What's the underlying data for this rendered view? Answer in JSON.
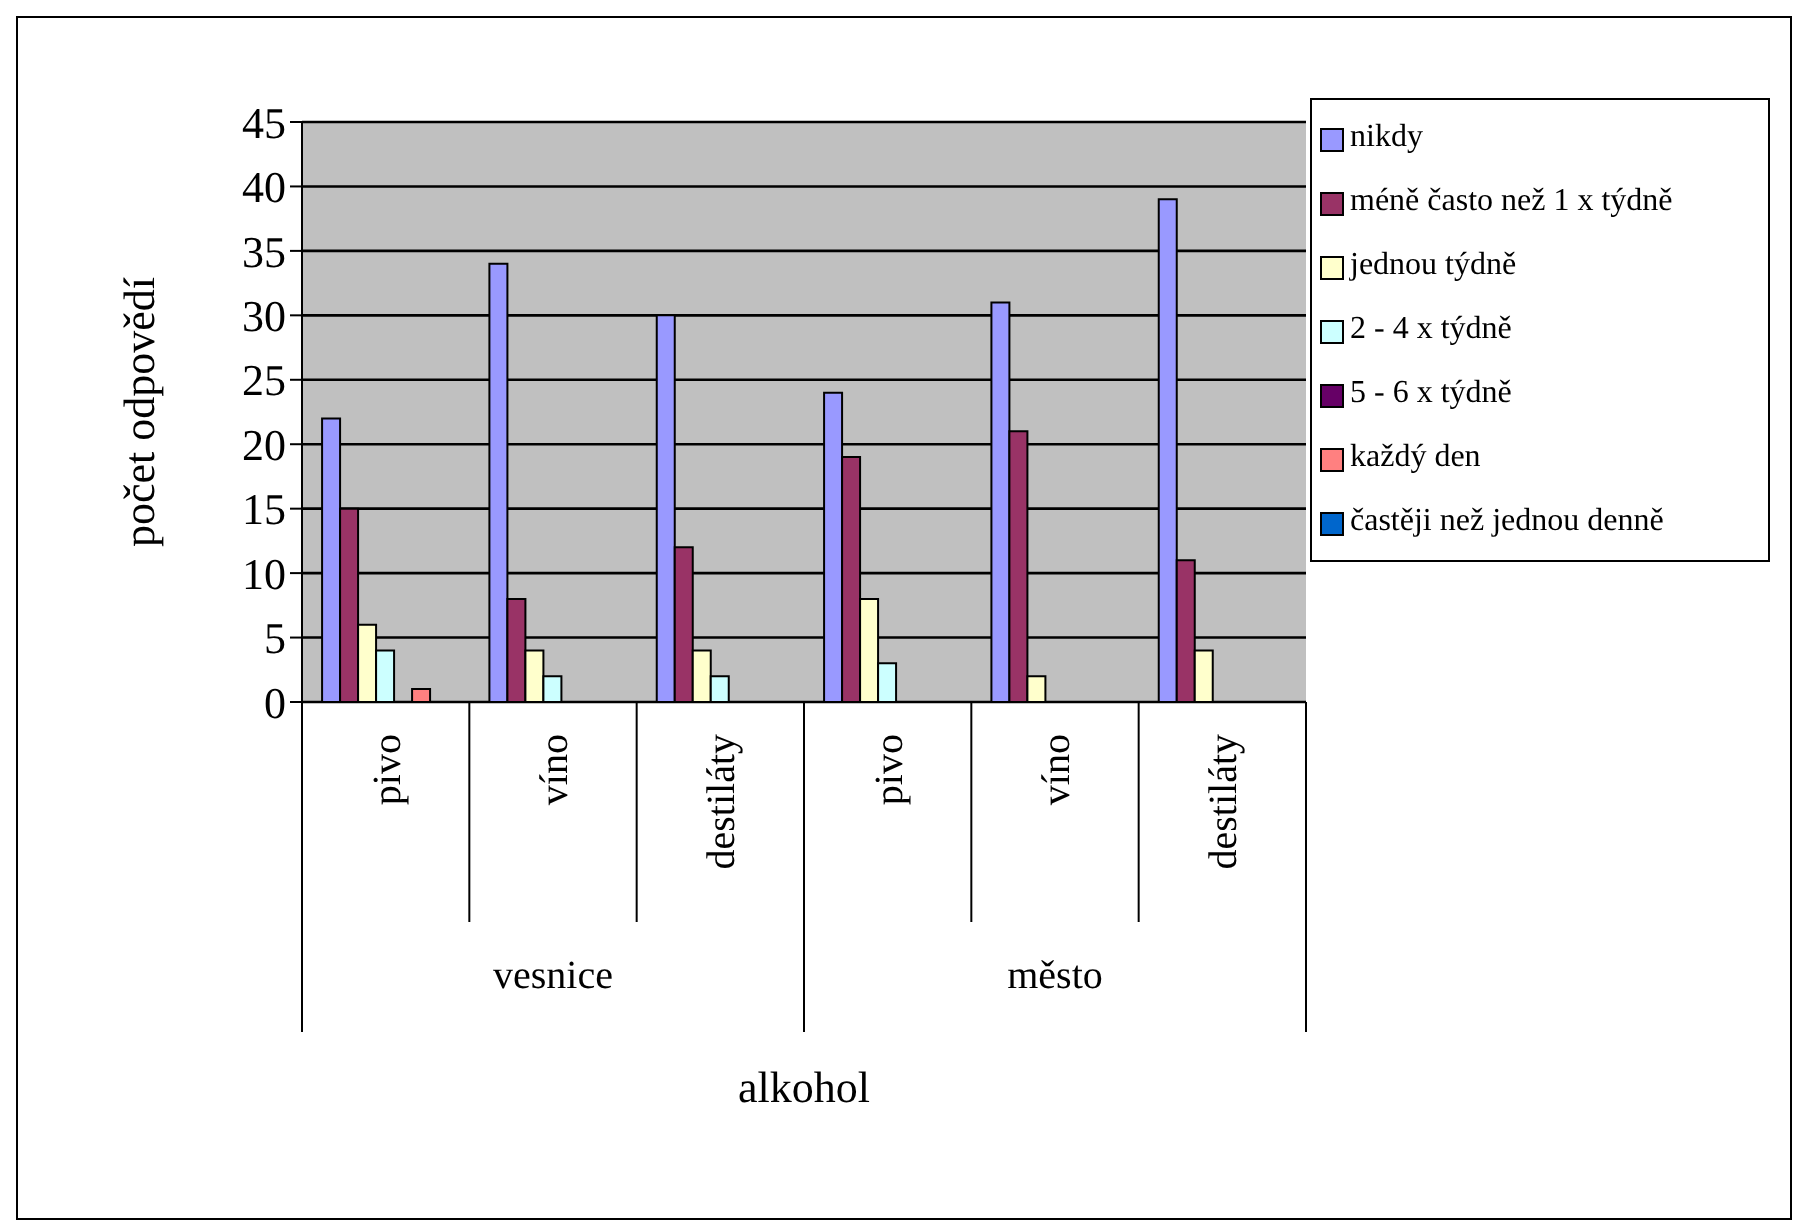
{
  "chart_data": {
    "type": "bar",
    "xlabel": "alkohol",
    "ylabel": "počet odpovědí",
    "categories": [
      "pivo",
      "víno",
      "destiláty",
      "pivo",
      "víno",
      "destiláty"
    ],
    "annotations": [
      "vesnice",
      "město"
    ],
    "series": [
      {
        "name": "nikdy",
        "color": "#9999ff",
        "values": [
          22,
          34,
          30,
          24,
          31,
          39
        ]
      },
      {
        "name": "méně často než 1 x týdně",
        "color": "#993366",
        "values": [
          15,
          8,
          12,
          19,
          21,
          11
        ]
      },
      {
        "name": "jednou týdně",
        "color": "#ffffcc",
        "values": [
          6,
          4,
          4,
          8,
          2,
          4
        ]
      },
      {
        "name": "2 - 4 x týdně",
        "color": "#ccffff",
        "values": [
          4,
          2,
          2,
          3,
          0,
          0
        ]
      },
      {
        "name": "5 - 6 x týdně",
        "color": "#660066",
        "values": [
          0,
          0,
          0,
          0,
          0,
          0
        ]
      },
      {
        "name": "každý den",
        "color": "#ff8080",
        "values": [
          1,
          0,
          0,
          0,
          0,
          0
        ]
      },
      {
        "name": "častěji než jednou denně",
        "color": "#0066cc",
        "values": [
          0,
          0,
          0,
          0,
          0,
          0
        ]
      }
    ],
    "ylim": [
      0,
      45
    ],
    "yticks": [
      0,
      5,
      10,
      15,
      20,
      25,
      30,
      35,
      40,
      45
    ],
    "grid": "y",
    "legend": "right"
  }
}
